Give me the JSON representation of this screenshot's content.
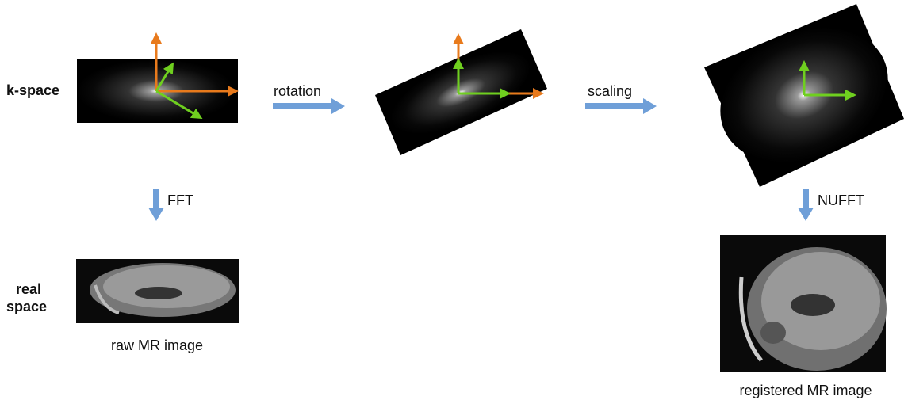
{
  "row_labels": {
    "k_space": "k-space",
    "real_space": [
      "real",
      "space"
    ]
  },
  "steps": {
    "rotation": "rotation",
    "scaling": "scaling",
    "fft": "FFT",
    "nufft": "NUFFT"
  },
  "captions": {
    "raw": "raw MR image",
    "registered": "registered MR image"
  }
}
